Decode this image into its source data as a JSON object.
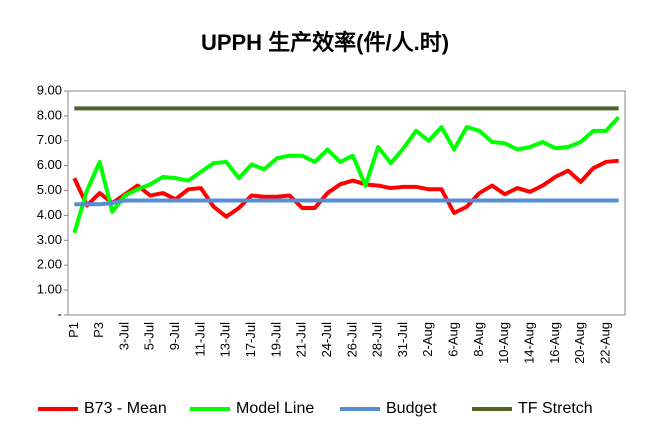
{
  "chart_data": {
    "type": "line",
    "title": "UPPH 生产效率(件/人.时)",
    "categories": [
      "P1",
      null,
      "P3",
      null,
      "3-Jul",
      null,
      "5-Jul",
      null,
      "9-Jul",
      null,
      "11-Jul",
      null,
      "13-Jul",
      null,
      "17-Jul",
      null,
      "19-Jul",
      null,
      "21-Jul",
      null,
      "24-Jul",
      null,
      "26-Jul",
      null,
      "28-Jul",
      null,
      "31-Jul",
      null,
      "2-Aug",
      null,
      "6-Aug",
      null,
      "8-Aug",
      null,
      "10-Aug",
      null,
      "14-Aug",
      null,
      "16-Aug",
      null,
      "20-Aug",
      null,
      "22-Aug",
      null
    ],
    "series": [
      {
        "name": "B73 - Mean",
        "color": "#ff0000",
        "values": [
          5.5,
          4.4,
          4.9,
          4.5,
          4.85,
          5.2,
          4.8,
          4.9,
          4.65,
          5.05,
          5.1,
          4.35,
          3.95,
          4.3,
          4.8,
          4.75,
          4.75,
          4.8,
          4.3,
          4.3,
          4.9,
          5.25,
          5.4,
          5.25,
          5.2,
          5.1,
          5.15,
          5.15,
          5.05,
          5.05,
          4.1,
          4.35,
          4.9,
          5.2,
          4.85,
          5.1,
          4.95,
          5.2,
          5.55,
          5.8,
          5.35,
          5.9,
          6.15,
          6.2
        ]
      },
      {
        "name": "Model Line",
        "color": "#00ff00",
        "values": [
          3.3,
          5.0,
          6.15,
          4.15,
          4.8,
          5.05,
          5.25,
          5.55,
          5.5,
          5.4,
          5.75,
          6.1,
          6.15,
          5.5,
          6.05,
          5.85,
          6.3,
          6.4,
          6.4,
          6.15,
          6.65,
          6.15,
          6.4,
          5.2,
          6.75,
          6.1,
          6.7,
          7.4,
          7.0,
          7.55,
          6.65,
          7.55,
          7.4,
          6.95,
          6.9,
          6.65,
          6.75,
          6.95,
          6.7,
          6.75,
          6.95,
          7.4,
          7.4,
          7.95
        ]
      },
      {
        "name": "Budget",
        "color": "#558ed5",
        "values": [
          4.45,
          4.45,
          4.45,
          4.5,
          4.6,
          4.6,
          4.6,
          4.6,
          4.6,
          4.6,
          4.6,
          4.6,
          4.6,
          4.6,
          4.6,
          4.6,
          4.6,
          4.6,
          4.6,
          4.6,
          4.6,
          4.6,
          4.6,
          4.6,
          4.6,
          4.6,
          4.6,
          4.6,
          4.6,
          4.6,
          4.6,
          4.6,
          4.6,
          4.6,
          4.6,
          4.6,
          4.6,
          4.6,
          4.6,
          4.6,
          4.6,
          4.6,
          4.6,
          4.6
        ]
      },
      {
        "name": "TF Stretch",
        "color": "#4f6228",
        "values": [
          8.3,
          8.3,
          8.3,
          8.3,
          8.3,
          8.3,
          8.3,
          8.3,
          8.3,
          8.3,
          8.3,
          8.3,
          8.3,
          8.3,
          8.3,
          8.3,
          8.3,
          8.3,
          8.3,
          8.3,
          8.3,
          8.3,
          8.3,
          8.3,
          8.3,
          8.3,
          8.3,
          8.3,
          8.3,
          8.3,
          8.3,
          8.3,
          8.3,
          8.3,
          8.3,
          8.3,
          8.3,
          8.3,
          8.3,
          8.3,
          8.3,
          8.3,
          8.3,
          8.3
        ]
      }
    ],
    "ylim": [
      0,
      9
    ],
    "yticks": [
      {
        "value": 0,
        "label": "-"
      },
      {
        "value": 1,
        "label": "1.00"
      },
      {
        "value": 2,
        "label": "2.00"
      },
      {
        "value": 3,
        "label": "3.00"
      },
      {
        "value": 4,
        "label": "4.00"
      },
      {
        "value": 5,
        "label": "5.00"
      },
      {
        "value": 6,
        "label": "6.00"
      },
      {
        "value": 7,
        "label": "7.00"
      },
      {
        "value": 8,
        "label": "8.00"
      },
      {
        "value": 9,
        "label": "9.00"
      }
    ],
    "grid": false,
    "legend": "bottom"
  }
}
